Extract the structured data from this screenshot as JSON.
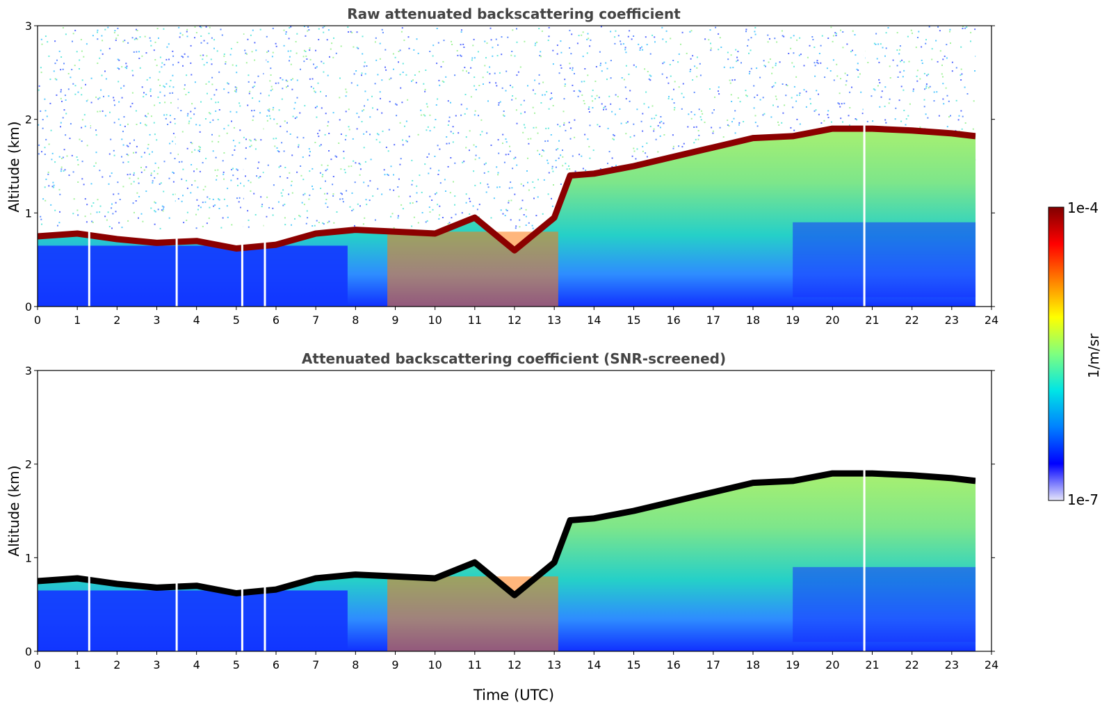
{
  "chart_data": [
    {
      "type": "heatmap",
      "id": "raw",
      "title": "Raw attenuated backscattering coefficient",
      "xlabel": "",
      "ylabel": "Altitude (km)",
      "xlim": [
        0,
        24
      ],
      "ylim": [
        0,
        3
      ],
      "x_ticks": [
        "0",
        "1",
        "2",
        "3",
        "4",
        "5",
        "6",
        "7",
        "8",
        "9",
        "10",
        "11",
        "12",
        "13",
        "14",
        "15",
        "16",
        "17",
        "18",
        "19",
        "20",
        "21",
        "22",
        "23",
        "24"
      ],
      "y_ticks": [
        "0",
        "1",
        "2",
        "3"
      ],
      "data_end_hour": 23.6,
      "gap_hours": [
        1.3,
        3.5,
        5.15,
        5.72,
        20.8
      ],
      "layer_top_km": [
        [
          0,
          0.75
        ],
        [
          1,
          0.78
        ],
        [
          2,
          0.72
        ],
        [
          3,
          0.68
        ],
        [
          4,
          0.7
        ],
        [
          5,
          0.62
        ],
        [
          6,
          0.66
        ],
        [
          7,
          0.78
        ],
        [
          8,
          0.82
        ],
        [
          9,
          0.8
        ],
        [
          10,
          0.78
        ],
        [
          11,
          0.95
        ],
        [
          12,
          0.6
        ],
        [
          13,
          0.95
        ],
        [
          13.4,
          1.4
        ],
        [
          14,
          1.42
        ],
        [
          15,
          1.5
        ],
        [
          16,
          1.6
        ],
        [
          17,
          1.7
        ],
        [
          18,
          1.8
        ],
        [
          19,
          1.82
        ],
        [
          20,
          1.9
        ],
        [
          21,
          1.9
        ],
        [
          22,
          1.88
        ],
        [
          23,
          1.85
        ],
        [
          23.6,
          1.82
        ]
      ]
    },
    {
      "type": "heatmap",
      "id": "snr",
      "title": "Attenuated backscattering coefficient (SNR-screened)",
      "xlabel": "Time (UTC)",
      "ylabel": "Altitude (km)",
      "xlim": [
        0,
        24
      ],
      "ylim": [
        0,
        3
      ],
      "x_ticks": [
        "0",
        "1",
        "2",
        "3",
        "4",
        "5",
        "6",
        "7",
        "8",
        "9",
        "10",
        "11",
        "12",
        "13",
        "14",
        "15",
        "16",
        "17",
        "18",
        "19",
        "20",
        "21",
        "22",
        "23",
        "24"
      ],
      "y_ticks": [
        "0",
        "1",
        "2",
        "3"
      ],
      "data_end_hour": 23.6,
      "gap_hours": [
        1.3,
        3.5,
        5.15,
        5.72,
        20.8
      ],
      "layer_top_km": [
        [
          0,
          0.75
        ],
        [
          1,
          0.78
        ],
        [
          2,
          0.72
        ],
        [
          3,
          0.68
        ],
        [
          4,
          0.7
        ],
        [
          5,
          0.62
        ],
        [
          6,
          0.66
        ],
        [
          7,
          0.78
        ],
        [
          8,
          0.82
        ],
        [
          9,
          0.8
        ],
        [
          10,
          0.78
        ],
        [
          11,
          0.95
        ],
        [
          12,
          0.6
        ],
        [
          13,
          0.95
        ],
        [
          13.4,
          1.4
        ],
        [
          14,
          1.42
        ],
        [
          15,
          1.5
        ],
        [
          16,
          1.6
        ],
        [
          17,
          1.7
        ],
        [
          18,
          1.8
        ],
        [
          19,
          1.82
        ],
        [
          20,
          1.9
        ],
        [
          21,
          1.9
        ],
        [
          22,
          1.88
        ],
        [
          23,
          1.85
        ],
        [
          23.6,
          1.82
        ]
      ]
    }
  ],
  "colorbar": {
    "label": "1/m/sr",
    "max_label": "1e-4",
    "min_label": "1e-7",
    "colors": [
      "#e6e6fa",
      "#0000ff",
      "#0080ff",
      "#00e5e5",
      "#7fff7f",
      "#ffff00",
      "#ff8000",
      "#ff0000",
      "#800000"
    ]
  }
}
